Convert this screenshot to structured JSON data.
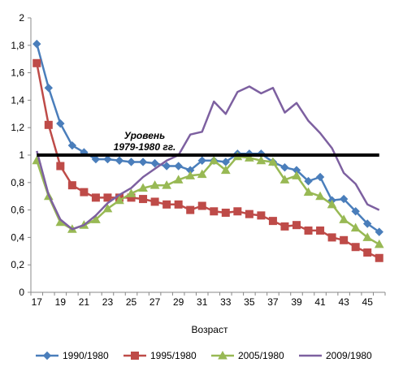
{
  "chart_data": {
    "type": "line",
    "title": "",
    "xlabel": "Возраст",
    "ylabel": "",
    "x": [
      17,
      18,
      19,
      20,
      21,
      22,
      23,
      24,
      25,
      26,
      27,
      28,
      29,
      30,
      31,
      32,
      33,
      34,
      35,
      36,
      37,
      38,
      39,
      40,
      41,
      42,
      43,
      44,
      45,
      46
    ],
    "x_tick_labels": [
      "17",
      "19",
      "21",
      "23",
      "25",
      "27",
      "29",
      "31",
      "33",
      "35",
      "37",
      "39",
      "41",
      "43",
      "45"
    ],
    "xlim": [
      17,
      46
    ],
    "ylim": [
      0,
      2
    ],
    "y_ticks": [
      0,
      0.2,
      0.4,
      0.6,
      0.8,
      1,
      1.2,
      1.4,
      1.6,
      1.8,
      2
    ],
    "y_tick_labels": [
      "0",
      "0,2",
      "0,4",
      "0,6",
      "0,8",
      "1",
      "1,2",
      "1,4",
      "1,6",
      "1,8",
      "2"
    ],
    "grid": false,
    "legend_position": "bottom",
    "reference_line": {
      "value": 1,
      "color": "#000000",
      "label": "Уровень 1979-1980 гг."
    },
    "series": [
      {
        "name": "1990/1980",
        "color": "#4a7ebb",
        "marker": "diamond",
        "values": [
          1.81,
          1.49,
          1.23,
          1.07,
          1.02,
          0.97,
          0.97,
          0.96,
          0.95,
          0.95,
          0.94,
          0.92,
          0.92,
          0.89,
          0.96,
          0.96,
          0.95,
          1.01,
          1.01,
          1.01,
          0.95,
          0.91,
          0.89,
          0.81,
          0.84,
          0.67,
          0.68,
          0.59,
          0.5,
          0.44
        ]
      },
      {
        "name": "1995/1980",
        "color": "#be4b48",
        "marker": "square",
        "values": [
          1.67,
          1.22,
          0.92,
          0.78,
          0.73,
          0.69,
          0.69,
          0.69,
          0.69,
          0.68,
          0.66,
          0.64,
          0.64,
          0.6,
          0.63,
          0.59,
          0.58,
          0.59,
          0.57,
          0.56,
          0.52,
          0.48,
          0.49,
          0.45,
          0.45,
          0.4,
          0.38,
          0.33,
          0.29,
          0.25
        ]
      },
      {
        "name": "2005/1980",
        "color": "#98b954",
        "marker": "triangle",
        "values": [
          0.96,
          0.7,
          0.51,
          0.46,
          0.49,
          0.53,
          0.61,
          0.67,
          0.72,
          0.76,
          0.78,
          0.78,
          0.82,
          0.85,
          0.86,
          0.96,
          0.89,
          0.99,
          0.98,
          0.96,
          0.95,
          0.82,
          0.85,
          0.73,
          0.7,
          0.64,
          0.53,
          0.47,
          0.4,
          0.35
        ]
      },
      {
        "name": "2009/1980",
        "color": "#7d60a0",
        "marker": "none",
        "values": [
          1.03,
          0.71,
          0.53,
          0.46,
          0.49,
          0.56,
          0.65,
          0.71,
          0.76,
          0.84,
          0.9,
          0.96,
          1.0,
          1.15,
          1.17,
          1.39,
          1.3,
          1.46,
          1.5,
          1.45,
          1.49,
          1.31,
          1.38,
          1.25,
          1.16,
          1.05,
          0.87,
          0.79,
          0.64,
          0.6
        ]
      }
    ]
  }
}
